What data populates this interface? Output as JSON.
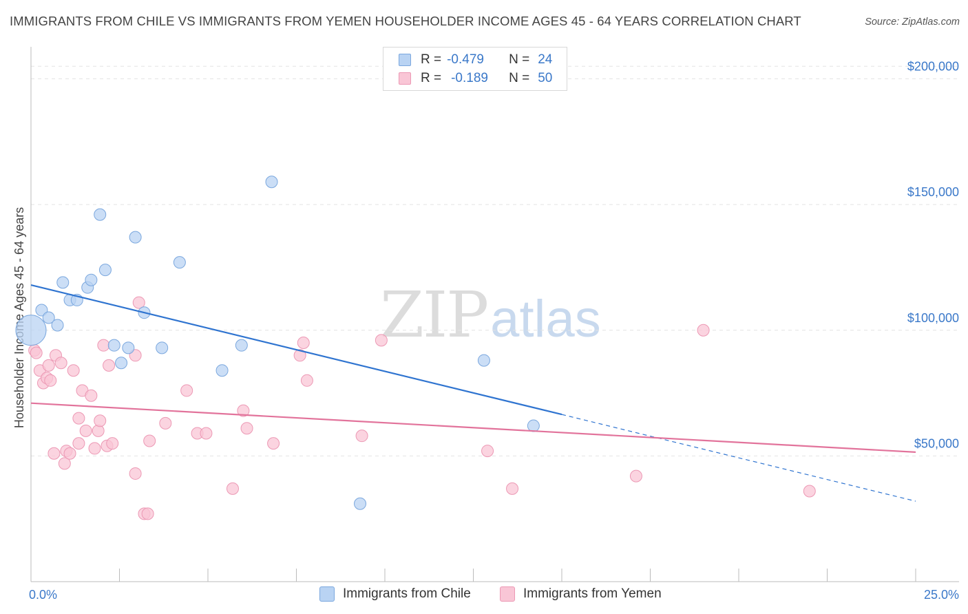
{
  "title": "IMMIGRANTS FROM CHILE VS IMMIGRANTS FROM YEMEN HOUSEHOLDER INCOME AGES 45 - 64 YEARS CORRELATION CHART",
  "source": "Source: ZipAtlas.com",
  "watermark": {
    "part1": "ZIP",
    "part2": "atlas"
  },
  "legend": {
    "rows": [
      {
        "r_label": "R =",
        "r_value": "-0.479",
        "n_label": "N =",
        "n_value": "24"
      },
      {
        "r_label": "R =",
        "r_value": "-0.189",
        "n_label": "N =",
        "n_value": "50"
      }
    ]
  },
  "colors": {
    "chile_fill": "#b9d3f3",
    "chile_stroke": "#7aa7de",
    "chile_line": "#2f74d0",
    "yemen_fill": "#f9c6d6",
    "yemen_stroke": "#ec98b4",
    "yemen_line": "#e2739b",
    "tick_text": "#3a78c9",
    "grid": "#e3e3e3"
  },
  "chart_data": {
    "type": "scatter",
    "title": "IMMIGRANTS FROM CHILE VS IMMIGRANTS FROM YEMEN HOUSEHOLDER INCOME AGES 45 - 64 YEARS CORRELATION CHART",
    "xlabel": "",
    "ylabel": "Householder Income Ages 45 - 64 years",
    "xlim": [
      0,
      25
    ],
    "ylim": [
      0,
      210000
    ],
    "x_tick_labels": [
      "0.0%",
      "25.0%"
    ],
    "y_ticks": [
      50000,
      100000,
      150000,
      200000
    ],
    "y_tick_labels": [
      "$50,000",
      "$100,000",
      "$150,000",
      "$200,000"
    ],
    "grid": true,
    "legend_position": "top-center",
    "series": [
      {
        "name": "Immigrants from Chile",
        "R": -0.479,
        "N": 24,
        "trend": {
          "x0": 0,
          "y0": 118000,
          "x1": 15,
          "y1": 66500,
          "dashed_to_x": 25,
          "dashed_to_y": 32000
        },
        "points": [
          [
            0.0,
            100000,
            "large"
          ],
          [
            0.3,
            108000
          ],
          [
            0.5,
            105000
          ],
          [
            0.75,
            102000
          ],
          [
            0.9,
            119000
          ],
          [
            1.1,
            112000
          ],
          [
            1.3,
            112000
          ],
          [
            1.6,
            117000
          ],
          [
            1.7,
            120000
          ],
          [
            1.95,
            146000
          ],
          [
            2.1,
            124000
          ],
          [
            2.35,
            94000
          ],
          [
            2.55,
            87000
          ],
          [
            2.75,
            93000
          ],
          [
            2.95,
            137000
          ],
          [
            3.2,
            107000
          ],
          [
            3.7,
            93000
          ],
          [
            4.2,
            127000
          ],
          [
            5.4,
            84000
          ],
          [
            5.95,
            94000
          ],
          [
            6.8,
            159000
          ],
          [
            9.3,
            31000
          ],
          [
            12.8,
            88000
          ],
          [
            14.2,
            62000
          ]
        ]
      },
      {
        "name": "Immigrants from Yemen",
        "R": -0.189,
        "N": 50,
        "trend": {
          "x0": 0,
          "y0": 71000,
          "x1": 25,
          "y1": 51500
        },
        "points": [
          [
            0.1,
            92000
          ],
          [
            0.15,
            91000
          ],
          [
            0.25,
            84000
          ],
          [
            0.35,
            79000
          ],
          [
            0.45,
            81000
          ],
          [
            0.5,
            86000
          ],
          [
            0.55,
            80000
          ],
          [
            0.65,
            51000
          ],
          [
            0.7,
            90000
          ],
          [
            0.85,
            87000
          ],
          [
            0.95,
            47000
          ],
          [
            1.0,
            52000
          ],
          [
            1.1,
            51000
          ],
          [
            1.2,
            84000
          ],
          [
            1.35,
            55000
          ],
          [
            1.35,
            65000
          ],
          [
            1.45,
            76000
          ],
          [
            1.55,
            60000
          ],
          [
            1.7,
            74000
          ],
          [
            1.8,
            53000
          ],
          [
            1.9,
            60000
          ],
          [
            1.95,
            64000
          ],
          [
            2.05,
            94000
          ],
          [
            2.15,
            54000
          ],
          [
            2.2,
            86000
          ],
          [
            2.3,
            55000
          ],
          [
            2.95,
            90000
          ],
          [
            2.95,
            43000
          ],
          [
            3.05,
            111000
          ],
          [
            3.2,
            27000
          ],
          [
            3.3,
            27000
          ],
          [
            3.35,
            56000
          ],
          [
            3.8,
            63000
          ],
          [
            4.4,
            76000
          ],
          [
            4.7,
            59000
          ],
          [
            4.95,
            59000
          ],
          [
            5.7,
            37000
          ],
          [
            6.0,
            68000
          ],
          [
            6.1,
            61000
          ],
          [
            6.85,
            55000
          ],
          [
            7.6,
            90000
          ],
          [
            7.7,
            95000
          ],
          [
            7.8,
            80000
          ],
          [
            9.35,
            58000
          ],
          [
            9.9,
            96000
          ],
          [
            12.9,
            52000
          ],
          [
            13.6,
            37000
          ],
          [
            17.1,
            42000
          ],
          [
            19.0,
            100000
          ],
          [
            22.0,
            36000
          ]
        ]
      }
    ]
  }
}
